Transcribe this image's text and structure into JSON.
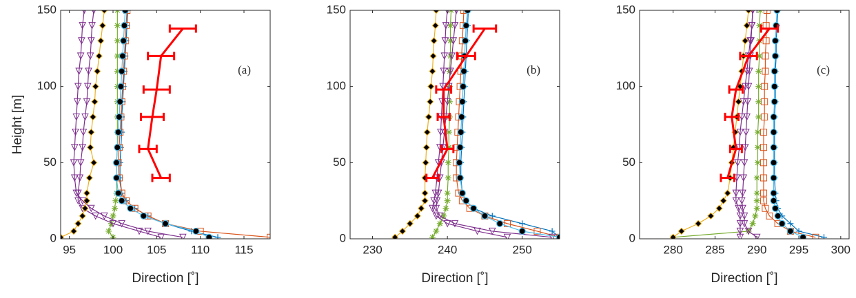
{
  "chart_data": [
    {
      "type": "line",
      "annotation": "(a)",
      "xlabel": "Direction [˚]",
      "ylabel": "Height [m]",
      "xlim": [
        94,
        118
      ],
      "xticks": [
        95,
        100,
        105,
        110,
        115
      ],
      "ylim": [
        0,
        150
      ],
      "yticks": [
        0,
        50,
        100,
        150
      ],
      "y": [
        1,
        5,
        10,
        15,
        20,
        25,
        30,
        40,
        50,
        60,
        70,
        80,
        90,
        100,
        110,
        120,
        130,
        140,
        150
      ],
      "series": [
        {
          "color": "#0072bd",
          "marker": "plus",
          "values": [
            112,
            109,
            106,
            104,
            102.5,
            101.5,
            101,
            100.8,
            100.8,
            100.9,
            101,
            101,
            101.1,
            101.2,
            101.3,
            101.4,
            101.5,
            101.6,
            101.7
          ]
        },
        {
          "color": "#d95319",
          "marker": "square",
          "values": [
            118,
            110,
            106,
            104,
            102.5,
            101.5,
            101,
            100.7,
            100.6,
            100.7,
            100.8,
            100.9,
            101,
            101.1,
            101.2,
            101.3,
            101.4,
            101.5,
            101.6
          ]
        },
        {
          "color": "#77ac30",
          "marker": "asterisk",
          "values": [
            100,
            99.5,
            99.8,
            100,
            100.2,
            100.3,
            100.4,
            100.4,
            100.4,
            100.5,
            100.5,
            100.5,
            100.5,
            100.5,
            100.5,
            100.5,
            100.5,
            100.5,
            100.5
          ]
        },
        {
          "color": "#7e2f8e",
          "marker": "triangle",
          "values": [
            105.5,
            103,
            100,
            98,
            96.5,
            96,
            96,
            96.2,
            96.3,
            96.5,
            96.6,
            96.8,
            97,
            97.1,
            97.2,
            97.4,
            97.5,
            97.6,
            97.8
          ]
        },
        {
          "color": "#7e2f8e",
          "marker": "triangle",
          "values": [
            108,
            104,
            101,
            99,
            97.5,
            96.5,
            95.8,
            95.6,
            95.5,
            95.6,
            95.7,
            95.8,
            95.9,
            96,
            96.1,
            96.3,
            96.4,
            96.5,
            96.7
          ]
        },
        {
          "color": "#edb120",
          "marker": "diamond",
          "values": [
            94,
            95.5,
            96,
            96.5,
            96.8,
            97,
            97,
            97.3,
            97.8,
            97.4,
            97.5,
            97.7,
            97.9,
            98,
            98.2,
            98.4,
            98.6,
            98.8,
            99
          ]
        },
        {
          "color": "#4dbeee",
          "marker": "circle",
          "values": [
            111,
            109.5,
            106,
            103.5,
            102,
            101,
            100.6,
            100.4,
            100.4,
            100.5,
            100.6,
            100.7,
            100.8,
            100.9,
            101,
            101.1,
            101.2,
            101.3,
            101.4
          ]
        }
      ],
      "measured": {
        "color": "#ff0000",
        "y": [
          40,
          59,
          80,
          98,
          120,
          138
        ],
        "values": [
          105.5,
          104,
          104.5,
          105,
          105.5,
          108
        ],
        "err": [
          1,
          1,
          1.3,
          1.5,
          1.5,
          1.5
        ]
      }
    },
    {
      "type": "line",
      "annotation": "(b)",
      "xlabel": "Direction [˚]",
      "xlim": [
        227,
        255
      ],
      "xticks": [
        230,
        240,
        250
      ],
      "ylim": [
        0,
        150
      ],
      "yticks": [
        0,
        50,
        100,
        150
      ],
      "y": [
        1,
        5,
        10,
        15,
        20,
        25,
        30,
        40,
        50,
        60,
        70,
        80,
        90,
        100,
        110,
        120,
        130,
        140,
        150
      ],
      "series": [
        {
          "color": "#0072bd",
          "marker": "plus",
          "values": [
            255,
            254,
            250,
            246,
            243.5,
            242.5,
            242,
            241.8,
            241.8,
            241.9,
            242,
            242.1,
            242.2,
            242.3,
            242.4,
            242.5,
            242.6,
            242.7,
            242.8
          ]
        },
        {
          "color": "#d95319",
          "marker": "square",
          "values": [
            255,
            252,
            248,
            245,
            243,
            242,
            241.5,
            241.2,
            241.2,
            241.3,
            241.4,
            241.5,
            241.6,
            241.7,
            241.8,
            241.9,
            242,
            242.1,
            242.2
          ]
        },
        {
          "color": "#77ac30",
          "marker": "asterisk",
          "values": [
            238,
            238.5,
            239,
            239.5,
            239.8,
            240,
            240,
            240.1,
            240.1,
            240.2,
            240.2,
            240.3,
            240.3,
            240.3,
            240.3,
            240.4,
            240.4,
            240.4,
            240.5
          ]
        },
        {
          "color": "#7e2f8e",
          "marker": "triangle",
          "values": [
            248,
            244,
            240,
            238.5,
            238,
            238.2,
            238.4,
            238.6,
            238.8,
            239,
            239.1,
            239.2,
            239.3,
            239.4,
            239.5,
            239.6,
            239.7,
            239.8,
            240
          ]
        },
        {
          "color": "#7e2f8e",
          "marker": "triangle",
          "values": [
            254,
            246,
            241,
            239,
            238.5,
            238.6,
            238.8,
            239,
            239.2,
            239.4,
            239.6,
            239.8,
            240,
            240.2,
            240.4,
            240.6,
            240.8,
            241,
            241.2
          ]
        },
        {
          "color": "#edb120",
          "marker": "diamond",
          "values": [
            233,
            234,
            235,
            236,
            236.5,
            237,
            237,
            237,
            237.1,
            237.2,
            237.3,
            237.5,
            237.7,
            237.8,
            238,
            238.1,
            238.2,
            238.4,
            238.5
          ]
        },
        {
          "color": "#4dbeee",
          "marker": "circle",
          "values": [
            255,
            250,
            247,
            245,
            243.5,
            242.5,
            242,
            241.7,
            241.6,
            241.7,
            241.8,
            241.9,
            242,
            242.1,
            242.2,
            242.3,
            242.4,
            242.5,
            242.7
          ]
        }
      ],
      "measured": {
        "color": "#ff0000",
        "y": [
          40,
          59,
          80,
          98,
          120,
          138
        ],
        "values": [
          238,
          240,
          239.5,
          239.5,
          242.5,
          245
        ],
        "err": [
          0.8,
          0.8,
          0.8,
          1,
          1.2,
          1.5
        ]
      }
    },
    {
      "type": "line",
      "annotation": "(c)",
      "xlabel": "Direction [˚]",
      "xlim": [
        276,
        301
      ],
      "xticks": [
        280,
        285,
        290,
        295,
        300
      ],
      "ylim": [
        0,
        150
      ],
      "yticks": [
        0,
        50,
        100,
        150
      ],
      "y": [
        1,
        5,
        10,
        15,
        20,
        25,
        30,
        40,
        50,
        60,
        70,
        80,
        90,
        100,
        110,
        120,
        130,
        140,
        150
      ],
      "series": [
        {
          "color": "#0072bd",
          "marker": "plus",
          "values": [
            298,
            295,
            294,
            293,
            292.5,
            292.3,
            292.2,
            292.1,
            292.1,
            292.1,
            292.1,
            292.1,
            292.2,
            292.2,
            292.2,
            292.3,
            292.3,
            292.4,
            292.5
          ]
        },
        {
          "color": "#d95319",
          "marker": "square",
          "values": [
            297,
            294,
            292.5,
            291.5,
            291,
            290.8,
            290.8,
            290.8,
            290.8,
            290.8,
            290.8,
            290.9,
            290.9,
            290.9,
            291,
            291,
            291.1,
            291.1,
            291.2
          ]
        },
        {
          "color": "#77ac30",
          "marker": "asterisk",
          "values": [
            280,
            289,
            289.5,
            289.8,
            290,
            290,
            290,
            290,
            290.1,
            290.1,
            290.1,
            290.2,
            290.2,
            290.2,
            290.2,
            290.3,
            290.3,
            290.3,
            290.4
          ]
        },
        {
          "color": "#7e2f8e",
          "marker": "triangle",
          "values": [
            288,
            288,
            288,
            288,
            287.8,
            287.5,
            287.5,
            287.6,
            287.7,
            287.9,
            288,
            288.2,
            288.4,
            288.6,
            288.8,
            289,
            289.2,
            289.4,
            289.5
          ]
        },
        {
          "color": "#7e2f8e",
          "marker": "triangle",
          "values": [
            290,
            289,
            288.5,
            288.5,
            288.3,
            288.2,
            288.3,
            288.4,
            288.5,
            288.6,
            288.7,
            288.8,
            288.9,
            289,
            289.1,
            289.2,
            289.3,
            289.4,
            289.5
          ]
        },
        {
          "color": "#edb120",
          "marker": "diamond",
          "values": [
            280,
            281,
            283,
            284.5,
            285.5,
            286,
            286.5,
            286.8,
            287,
            287.2,
            287.4,
            287.6,
            287.8,
            288,
            288.2,
            288.4,
            288.6,
            288.8,
            289
          ]
        },
        {
          "color": "#4dbeee",
          "marker": "circle",
          "values": [
            295.5,
            294,
            293,
            292.5,
            292.2,
            292,
            292,
            292,
            292,
            292,
            292,
            292,
            292.1,
            292.1,
            292.1,
            292.2,
            292.2,
            292.3,
            292.4
          ]
        }
      ],
      "measured": {
        "color": "#ff0000",
        "y": [
          40,
          59,
          80,
          98,
          120,
          138
        ],
        "values": [
          286.5,
          287.5,
          287,
          287.5,
          289,
          291.5
        ],
        "err": [
          0.8,
          0.7,
          0.8,
          0.8,
          1,
          1
        ]
      }
    }
  ]
}
